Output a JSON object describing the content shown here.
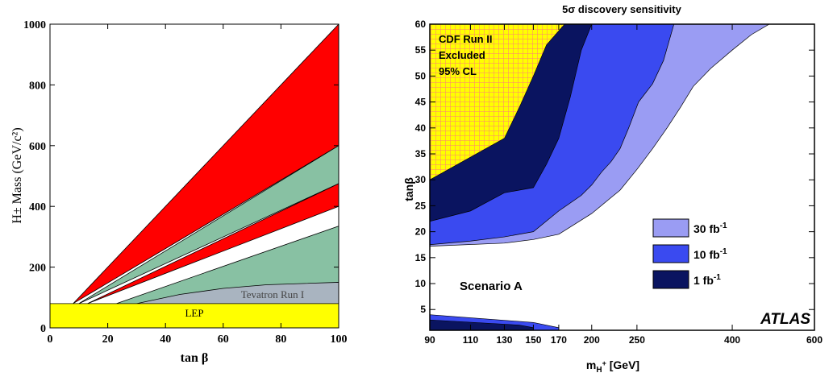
{
  "chart_data": [
    {
      "type": "area",
      "xlabel": "tan β",
      "ylabel": "H± Mass (GeV/c²)",
      "xlim": [
        0,
        100
      ],
      "ylim": [
        0,
        1000
      ],
      "xticks": [
        0,
        20,
        40,
        60,
        80,
        100
      ],
      "yticks": [
        0,
        200,
        400,
        600,
        800,
        1000
      ],
      "colors": {
        "red": "#ff0000",
        "green": "#88c1a3",
        "grey": "#a9b4c0",
        "yellow": "#ffff00"
      },
      "regions": [
        {
          "color": "red",
          "x": [
            8,
            100,
            100
          ],
          "y": [
            80,
            1000,
            600
          ]
        },
        {
          "color": "green",
          "x": [
            10,
            100,
            100
          ],
          "y": [
            80,
            600,
            475
          ]
        },
        {
          "color": "red",
          "x": [
            13,
            100,
            100
          ],
          "y": [
            80,
            475,
            400
          ]
        },
        {
          "color": "green",
          "x": [
            23,
            100,
            100
          ],
          "y": [
            80,
            335,
            80
          ]
        },
        {
          "color": "grey",
          "x": [
            30,
            45,
            60,
            75,
            100,
            100
          ],
          "y": [
            80,
            110,
            130,
            142,
            150,
            80
          ]
        },
        {
          "color": "yellow",
          "x": [
            0,
            100,
            100,
            0
          ],
          "y": [
            0,
            0,
            80,
            80
          ]
        }
      ],
      "annotations": [
        {
          "text": "Tevatron Run I",
          "x": 78,
          "y": 98
        },
        {
          "text": "LEP",
          "x": 50,
          "y": 42
        }
      ]
    },
    {
      "type": "area",
      "title": "5σ discovery sensitivity",
      "xlabel": "m_H+ [GeV]",
      "ylabel": "tanβ",
      "xlim": [
        90,
        600
      ],
      "ylim": [
        1,
        60
      ],
      "xscale": "log",
      "xticks": [
        90,
        110,
        130,
        150,
        170,
        200,
        250,
        400,
        600
      ],
      "yticks": [
        5,
        10,
        15,
        20,
        25,
        30,
        35,
        40,
        45,
        50,
        55,
        60
      ],
      "colors": {
        "30": "#9a9cf3",
        "10": "#3a4af0",
        "1": "#0a1460",
        "cdf": "#ffff00",
        "hatch": "#ff7a7a"
      },
      "series": [
        {
          "name": "30 fb",
          "upper": {
            "x": [
              90,
              130,
              150,
              170,
              200,
              230,
              250,
              270,
              290,
              310,
              330,
              360,
              400,
              440,
              480
            ],
            "y": [
              17.2,
              17.8,
              18.5,
              19.5,
              23.5,
              28,
              32,
              36,
              40,
              44,
              48,
              51.5,
              55,
              58,
              60
            ]
          },
          "lower": {
            "x": [
              90,
              480
            ],
            "y": [
              17.2,
              60
            ]
          }
        },
        {
          "name": "10 fb",
          "upper": {
            "x": [
              90,
              110,
              130,
              150,
              170,
              190,
              200,
              210,
              220,
              230,
              240,
              252,
              270,
              285,
              300
            ],
            "y": [
              17.5,
              18.2,
              19.0,
              20.0,
              24.0,
              27.0,
              29.0,
              31.5,
              33.5,
              36.0,
              40.0,
              45.0,
              48.5,
              53,
              60
            ]
          },
          "lower": {
            "x": [
              90,
              300
            ],
            "y": [
              17.5,
              60
            ]
          }
        },
        {
          "name": "1 fb",
          "upper": {
            "x": [
              90,
              110,
              130,
              150,
              160,
              170,
              180,
              190,
              200
            ],
            "y": [
              22.0,
              24.0,
              27.5,
              28.5,
              33.0,
              38.0,
              46.0,
              55.0,
              60.0
            ]
          },
          "lower": {
            "x": [
              90,
              200
            ],
            "y": [
              22.0,
              60.0
            ]
          }
        }
      ],
      "lowband": {
        "outer": {
          "x": [
            90,
            150,
            170
          ],
          "y": [
            4.0,
            2.5,
            1.5
          ]
        },
        "inner": {
          "x": [
            90,
            140,
            150
          ],
          "y": [
            3.0,
            2.0,
            1.5
          ]
        }
      },
      "cdf_region": {
        "x": [
          90,
          130,
          140,
          150,
          160,
          175
        ],
        "y": [
          30,
          38,
          44,
          50,
          56,
          60
        ]
      },
      "legend": {
        "items": [
          "30 fb",
          "10 fb",
          "1 fb"
        ],
        "exponent": "-1",
        "placement": "lower-right"
      },
      "annotations": {
        "cdf": [
          "CDF Run II",
          "Excluded",
          "95% CL"
        ],
        "scenario": "Scenario A",
        "experiment": "ATLAS"
      }
    }
  ]
}
